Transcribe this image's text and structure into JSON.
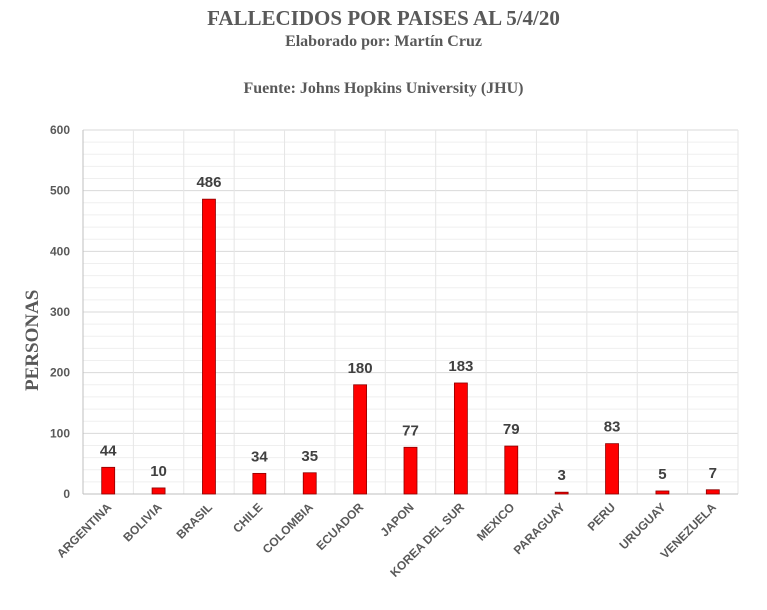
{
  "header": {
    "title": "FALLECIDOS POR PAISES AL 5/4/20",
    "subtitle": "Elaborado por: Martín Cruz",
    "source": "Fuente: Johns Hopkins University (JHU)"
  },
  "chart_data": {
    "type": "bar",
    "title": "FALLECIDOS POR PAISES AL 5/4/20",
    "subtitle": "Elaborado por: Martín Cruz",
    "xlabel": "",
    "ylabel": "PERSONAS",
    "ylim": [
      0,
      600
    ],
    "yticks": [
      0,
      100,
      200,
      300,
      400,
      500,
      600
    ],
    "grid": true,
    "bar_color": "#ff0000",
    "bar_edge_color": "#8b0000",
    "categories": [
      "ARGENTINA",
      "BOLIVIA",
      "BRASIL",
      "CHILE",
      "COLOMBIA",
      "ECUADOR",
      "JAPON",
      "KOREA DEL SUR",
      "MEXICO",
      "PARAGUAY",
      "PERU",
      "URUGUAY",
      "VENEZUELA"
    ],
    "values": [
      44,
      10,
      486,
      34,
      35,
      180,
      77,
      183,
      79,
      3,
      83,
      5,
      7
    ],
    "data_labels": true
  }
}
